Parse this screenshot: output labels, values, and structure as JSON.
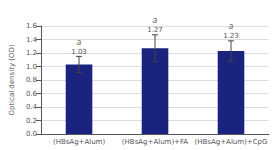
{
  "chart_data": {
    "type": "bar",
    "categories": [
      "(HBsAg+Alum)",
      "(HBsAg+Alum)+FA",
      "(HBsAg+Alum)+CpG"
    ],
    "values": [
      1.03,
      1.27,
      1.23
    ],
    "errors": [
      0.12,
      0.2,
      0.15
    ],
    "annotations": [
      "a",
      "a",
      "a"
    ],
    "color": "#1a237e",
    "ylabel": "Optical density (OD)",
    "ylim": [
      0,
      1.6
    ],
    "yticks": [
      {
        "value": 0,
        "label": "0.0"
      },
      0.2,
      0.4,
      0.6,
      0.8,
      {
        "value": 1.0,
        "label": "1.0"
      },
      1.2,
      1.4,
      1.6
    ],
    "grid": true,
    "data_labels": true
  }
}
